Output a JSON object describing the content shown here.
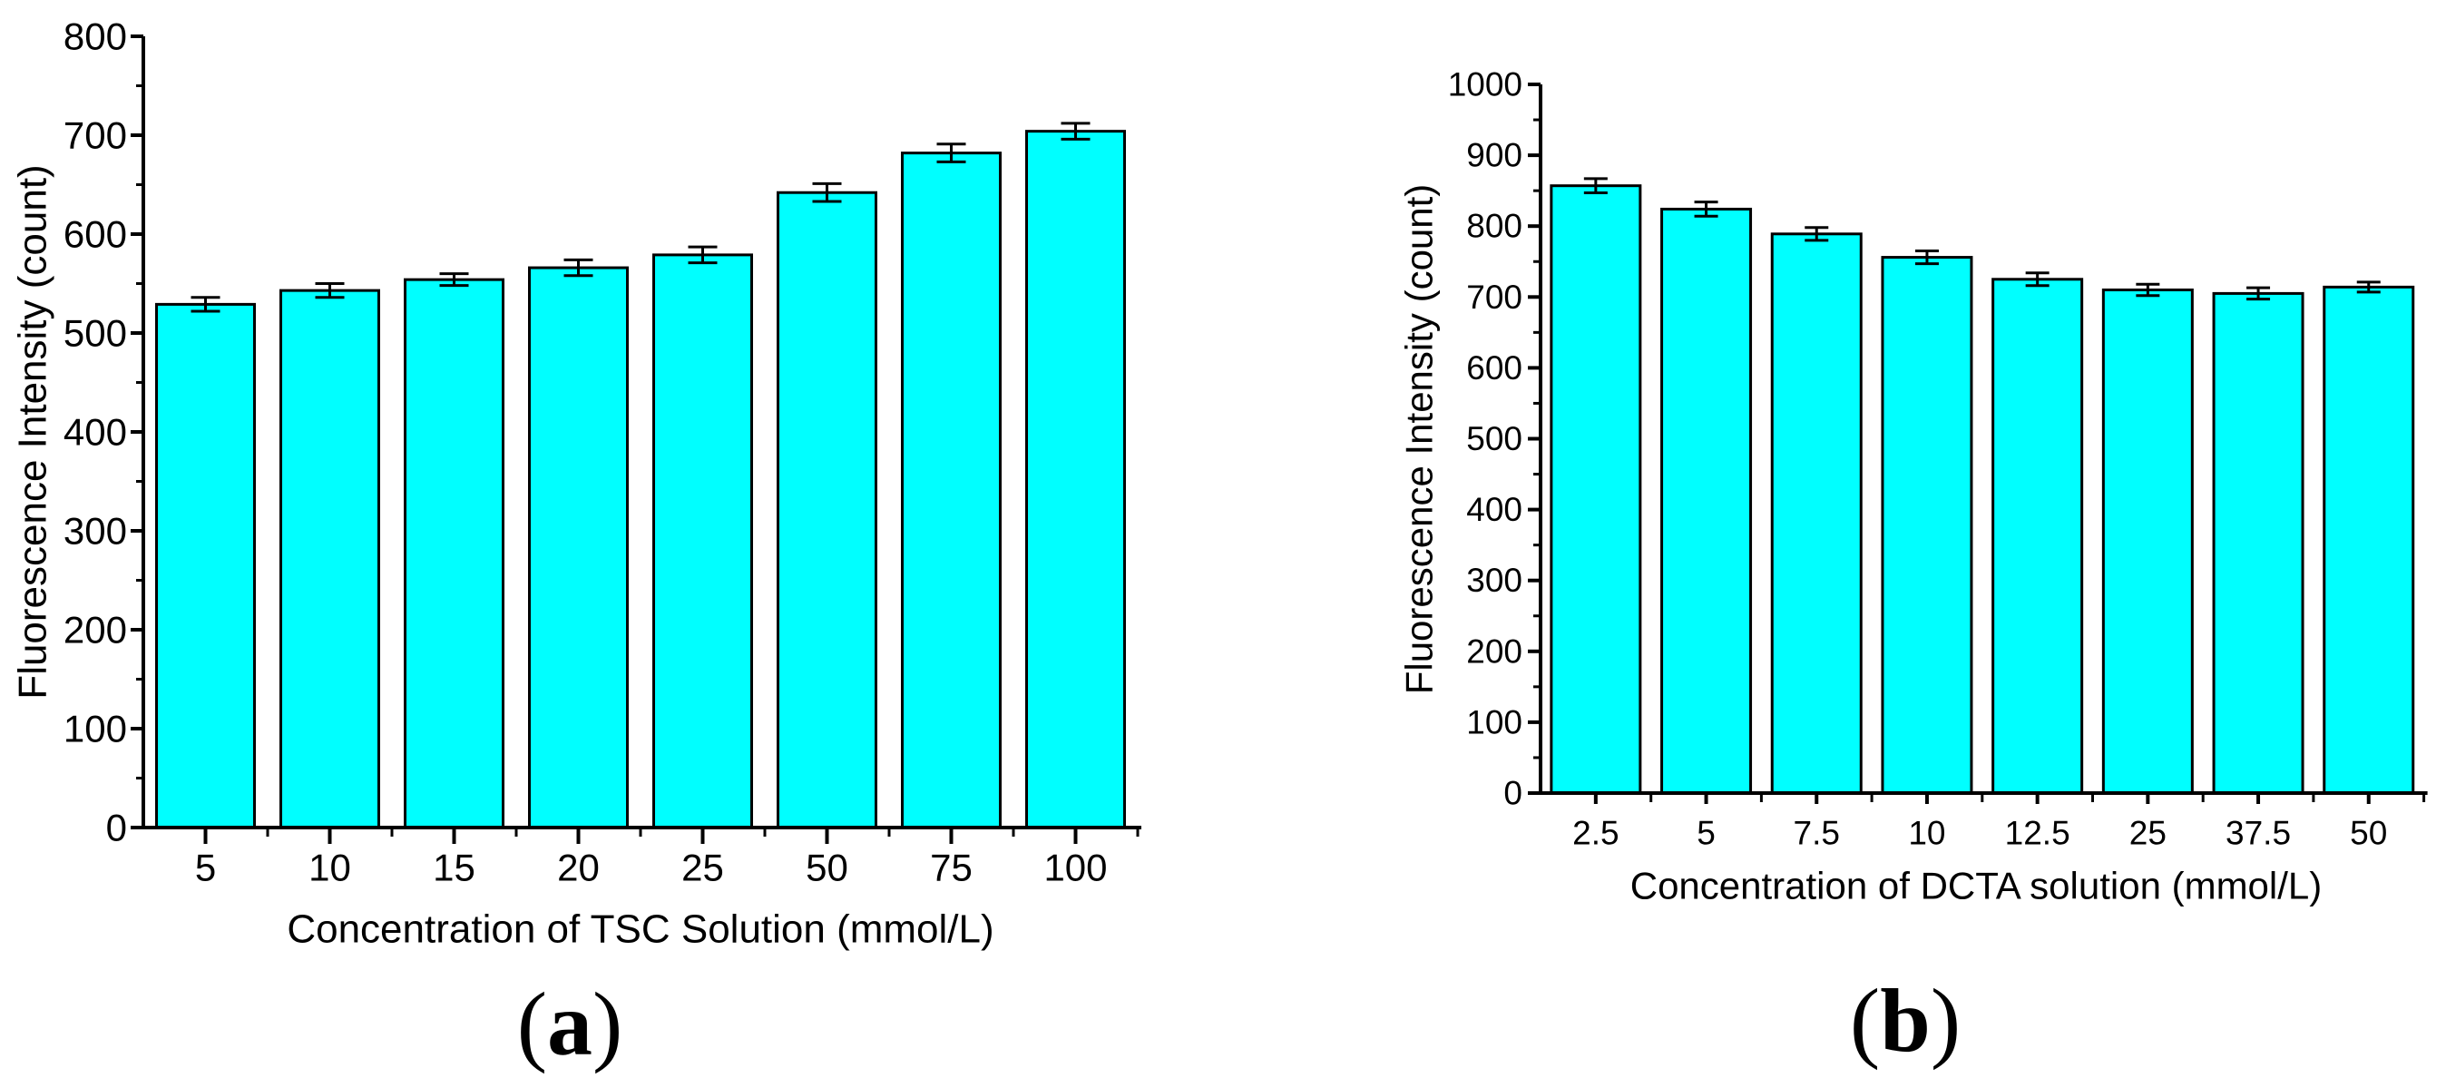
{
  "figure": {
    "background": "#ffffff",
    "text_color": "#000000",
    "panel_captions": [
      "(a)",
      "(b)"
    ]
  },
  "chart_data": [
    {
      "type": "bar",
      "panel_label_open": "(",
      "panel_label_letter": "a",
      "panel_label_close": ")",
      "title": "",
      "categories": [
        "5",
        "10",
        "15",
        "20",
        "25",
        "50",
        "75",
        "100"
      ],
      "values": [
        529,
        543,
        554,
        566,
        579,
        642,
        682,
        704
      ],
      "errors": [
        7,
        7,
        6,
        8,
        8,
        9,
        9,
        8
      ],
      "xlabel": "Concentration of TSC Solution (mmol/L)",
      "ylabel": "Fluorescence Intensity (count)",
      "ylim": [
        0,
        800
      ],
      "ytick_interval": 100,
      "yminor_interval": 50,
      "ytick_labels": [
        "0",
        "100",
        "200",
        "300",
        "400",
        "500",
        "600",
        "700",
        "800"
      ],
      "bar_fill": "#00FFFF",
      "bar_stroke": "#000000",
      "error_color": "#000000",
      "axis_color": "#000000",
      "grid": false,
      "legend": "none"
    },
    {
      "type": "bar",
      "panel_label_open": "(",
      "panel_label_letter": "b",
      "panel_label_close": ")",
      "title": "",
      "categories": [
        "2.5",
        "5",
        "7.5",
        "10",
        "12.5",
        "25",
        "37.5",
        "50"
      ],
      "values": [
        857,
        824,
        789,
        756,
        725,
        710,
        705,
        714
      ],
      "errors": [
        10,
        10,
        9,
        9,
        9,
        8,
        8,
        7
      ],
      "xlabel": "Concentration of DCTA solution (mmol/L)",
      "ylabel": "Fluorescence Intensity (count)",
      "ylim": [
        0,
        1000
      ],
      "ytick_interval": 100,
      "yminor_interval": 50,
      "ytick_labels": [
        "0",
        "100",
        "200",
        "300",
        "400",
        "500",
        "600",
        "700",
        "800",
        "900",
        "1000"
      ],
      "bar_fill": "#00FFFF",
      "bar_stroke": "#000000",
      "error_color": "#000000",
      "axis_color": "#000000",
      "grid": false,
      "legend": "none"
    }
  ]
}
